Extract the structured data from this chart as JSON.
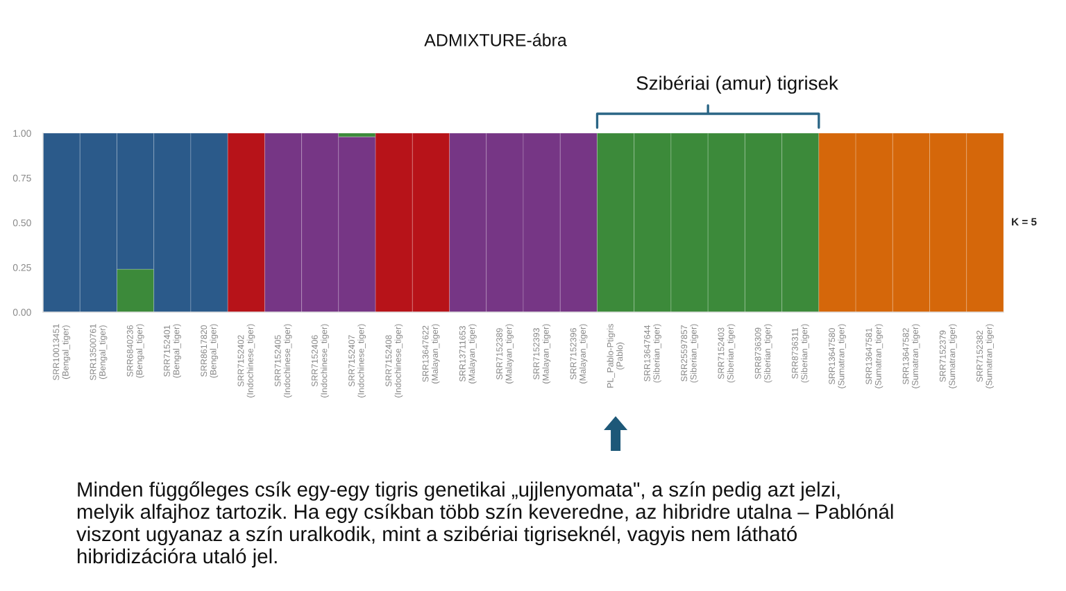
{
  "chart_data": {
    "type": "bar",
    "stacked": true,
    "title": "ADMIXTURE-ábra",
    "categories": [
      "SRR10013451\n(Bengal_tiger)",
      "SRR13500761\n(Bengal_tiger)",
      "SRR6840236\n(Bengal_tiger)",
      "SRR7152401\n(Bengal_tiger)",
      "SRR8617820\n(Bengal_tiger)",
      "SRR7152402\n(Indochinese_tiger)",
      "SRR7152405\n(Indochinese_tiger)",
      "SRR7152406\n(Indochinese_tiger)",
      "SRR7152407\n(Indochinese_tiger)",
      "SRR7152408\n(Indochinese_tiger)",
      "SRR13647622\n(Malayan_tiger)",
      "SRR13711653\n(Malayan_tiger)",
      "SRR7152389\n(Malayan_tiger)",
      "SRR7152393\n(Malayan_tiger)",
      "SRR7152396\n(Malayan_tiger)",
      "PL_Pablo-Ptigris\n(Pablo)",
      "SRR13647644\n(Siberian_tiger)",
      "SRR25597857\n(Siberian_tiger)",
      "SRR7152403\n(Siberian_tiger)",
      "SRR8736309\n(Siberian_tiger)",
      "SRR8736311\n(Siberian_tiger)",
      "SRR13647580\n(Sumatran_tiger)",
      "SRR13647581\n(Sumatran_tiger)",
      "SRR13647582\n(Sumatran_tiger)",
      "SRR7152379\n(Sumatran_tiger)",
      "SRR7152382\n(Sumatran_tiger)"
    ],
    "series": [
      {
        "color": "#763685",
        "values": [
          null,
          null,
          null,
          null,
          null,
          null,
          1,
          1,
          0.98,
          null,
          null,
          1,
          1,
          1,
          1,
          null,
          null,
          null,
          null,
          null,
          null,
          null,
          null,
          null,
          null,
          null
        ]
      },
      {
        "color": "#3c8a3a",
        "values": [
          null,
          null,
          0.24,
          null,
          null,
          null,
          null,
          null,
          0.02,
          null,
          null,
          null,
          null,
          null,
          null,
          1,
          1,
          1,
          1,
          1,
          1,
          null,
          null,
          null,
          null,
          null
        ]
      },
      {
        "color": "#2b5a8a",
        "values": [
          1,
          1,
          0.76,
          1,
          1,
          null,
          null,
          null,
          null,
          null,
          null,
          null,
          null,
          null,
          null,
          null,
          null,
          null,
          null,
          null,
          null,
          null,
          null,
          null,
          null,
          null
        ]
      },
      {
        "color": "#b71319",
        "values": [
          null,
          null,
          null,
          null,
          null,
          1,
          null,
          null,
          null,
          1,
          1,
          null,
          null,
          null,
          null,
          null,
          null,
          null,
          null,
          null,
          null,
          null,
          null,
          null,
          null,
          null
        ]
      },
      {
        "color": "#d5670a",
        "values": [
          null,
          null,
          null,
          null,
          null,
          null,
          null,
          null,
          null,
          null,
          null,
          null,
          null,
          null,
          null,
          null,
          null,
          null,
          null,
          null,
          null,
          1,
          1,
          1,
          1,
          1
        ]
      }
    ],
    "ylim": [
      0,
      1
    ],
    "yticks": [
      {
        "value": 0,
        "label": "0.00"
      },
      {
        "value": 0.25,
        "label": "0.25"
      },
      {
        "value": 0.5,
        "label": "0.50"
      },
      {
        "value": 0.75,
        "label": "0.75"
      },
      {
        "value": 1,
        "label": "1.00"
      }
    ],
    "grid": false,
    "legend": false,
    "annotations": [
      "Szibériai (amur) tigrisek",
      "K = 5",
      "Minden függőleges csík egy-egy tigris genetikai „ujjlenyomata\", a szín pedig azt jelzi,\nmelyik alfajhoz tartozik. Ha egy csíkban több szín keveredne, az hibridre utalna – Pablónál\nviszont ugyanaz a szín uralkodik, mint a szibériai tigriseknél, vagyis nem látható\nhibridizációra utaló jel."
    ]
  }
}
